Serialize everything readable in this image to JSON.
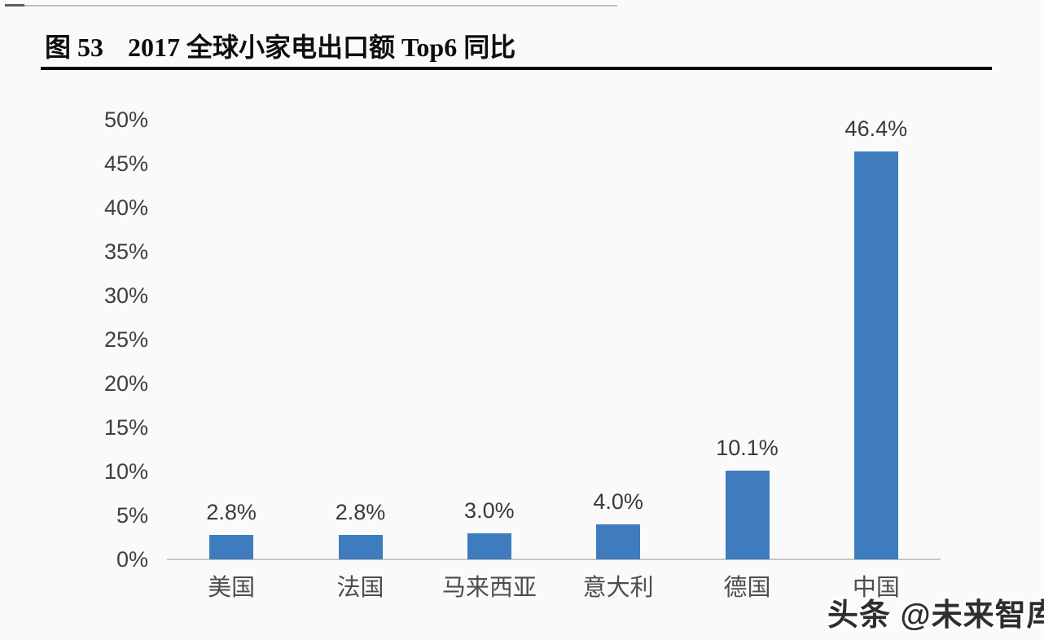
{
  "page": {
    "figure_label": "图 53",
    "title": "2017 全球小家电出口额 Top6 同比",
    "watermark": "头条 @未来智库",
    "background": "#fbfafa"
  },
  "chart_data": {
    "type": "bar",
    "title": "2017 全球小家电出口额 Top6 同比",
    "figure_label": "图 53",
    "categories": [
      "美国",
      "法国",
      "马来西亚",
      "意大利",
      "德国",
      "中国"
    ],
    "values": [
      2.8,
      2.8,
      3.0,
      4.0,
      10.1,
      46.4
    ],
    "value_labels": [
      "2.8%",
      "2.8%",
      "3.0%",
      "4.0%",
      "10.1%",
      "46.4%"
    ],
    "xlabel": "",
    "ylabel": "",
    "ylim": [
      0,
      50
    ],
    "y_ticks": [
      {
        "value": 0,
        "label": "0%"
      },
      {
        "value": 5,
        "label": "5%"
      },
      {
        "value": 10,
        "label": "10%"
      },
      {
        "value": 15,
        "label": "15%"
      },
      {
        "value": 20,
        "label": "20%"
      },
      {
        "value": 25,
        "label": "25%"
      },
      {
        "value": 30,
        "label": "30%"
      },
      {
        "value": 35,
        "label": "35%"
      },
      {
        "value": 40,
        "label": "40%"
      },
      {
        "value": 45,
        "label": "45%"
      },
      {
        "value": 50,
        "label": "50%"
      }
    ],
    "grid": false,
    "legend": "none",
    "bar_color": "#3e7cbe",
    "axis_line_color": "#c6c6c6",
    "tick_label_color": "#3f3f3f",
    "value_label_color": "#3a3a3a",
    "category_label_color": "#4d4d4d"
  }
}
